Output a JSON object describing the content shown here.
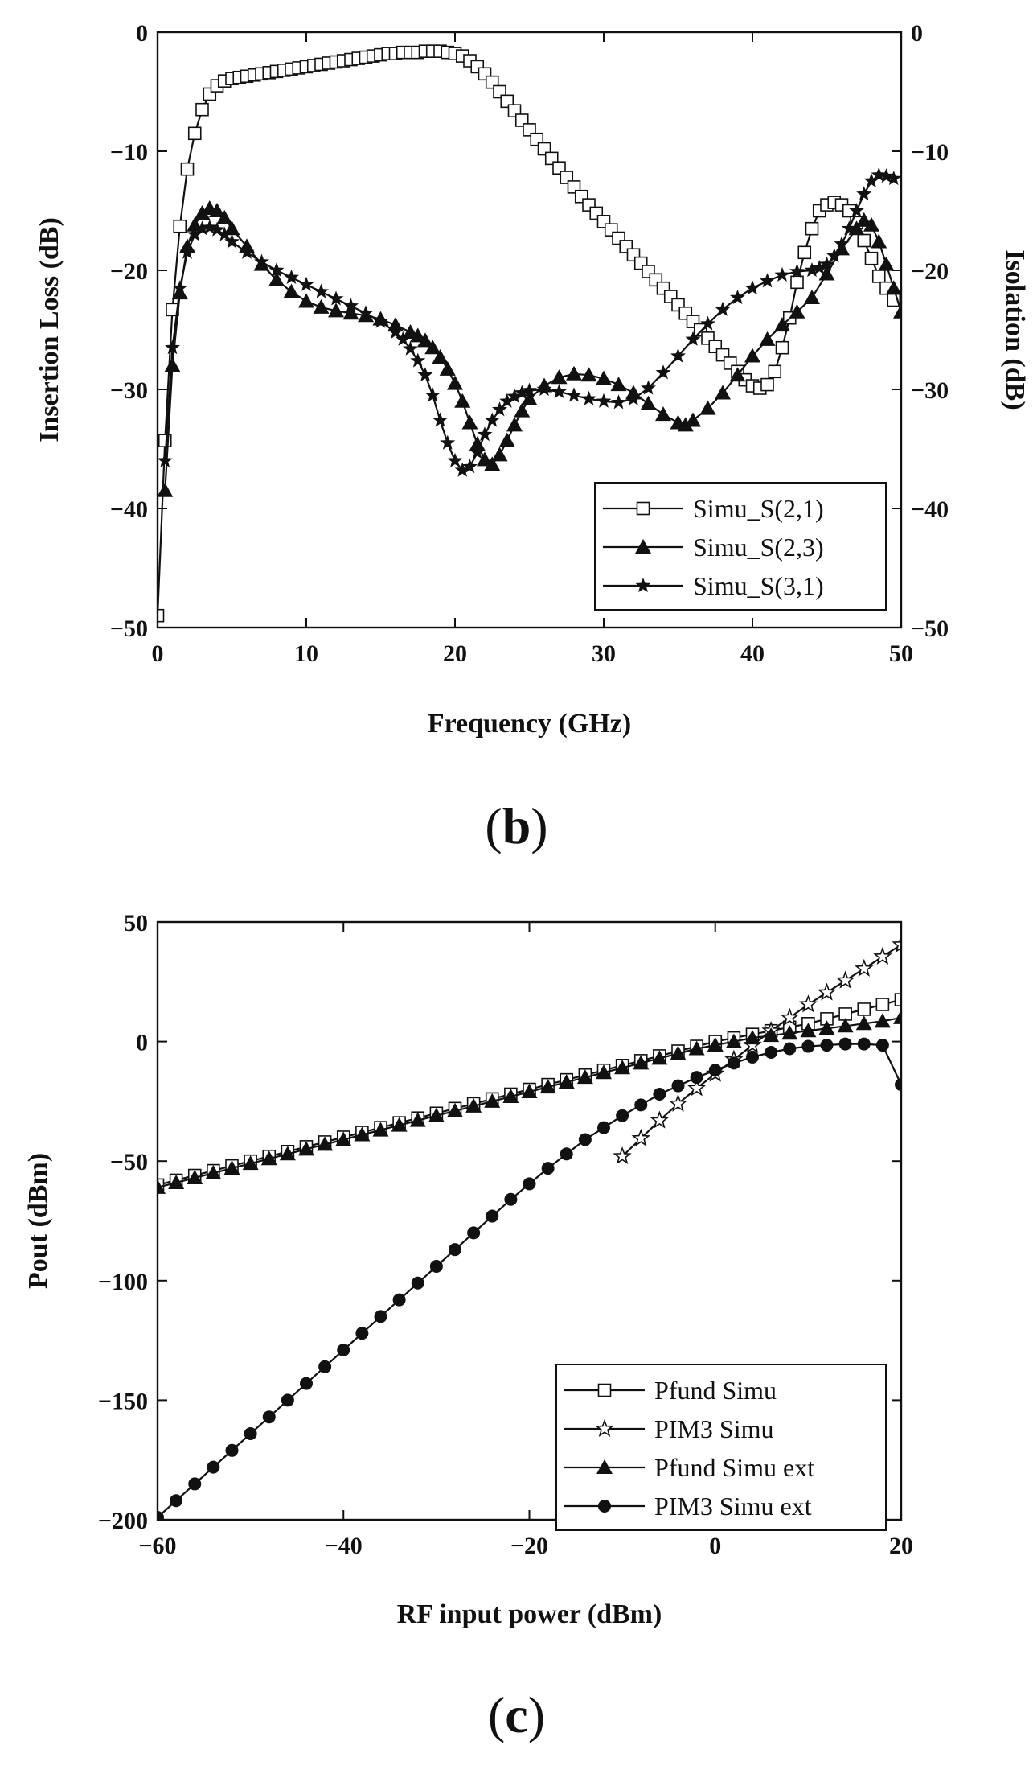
{
  "panel_b_caption": "b",
  "panel_c_caption": "c",
  "chart_data": [
    {
      "id": "b",
      "type": "line",
      "title": "",
      "xlabel": "Frequency (GHz)",
      "ylabel": "Insertion Loss (dB)",
      "ylabel_right": "Isolation (dB)",
      "xlim": [
        0,
        50
      ],
      "ylim": [
        -50,
        0
      ],
      "xticks": [
        "0",
        "10",
        "20",
        "30",
        "40",
        "50"
      ],
      "yticks": [
        "0",
        "−10",
        "−20",
        "−30",
        "−40",
        "−50"
      ],
      "yticks_right": [
        "0",
        "−10",
        "−20",
        "−30",
        "−40",
        "−50"
      ],
      "legend_position": "bottom-right",
      "series": [
        {
          "name": "Simu_S(2,1)",
          "marker": "square-open",
          "x": [
            0,
            0.5,
            1,
            1.5,
            2,
            2.5,
            3,
            3.5,
            4,
            4.5,
            5,
            5.5,
            6,
            6.5,
            7,
            7.5,
            8,
            8.5,
            9,
            9.5,
            10,
            10.5,
            11,
            11.5,
            12,
            12.5,
            13,
            13.5,
            14,
            14.5,
            15,
            15.5,
            16,
            16.5,
            17,
            17.5,
            18,
            18.5,
            19,
            19.5,
            20,
            20.5,
            21,
            21.5,
            22,
            22.5,
            23,
            23.5,
            24,
            24.5,
            25,
            25.5,
            26,
            26.5,
            27,
            27.5,
            28,
            28.5,
            29,
            29.5,
            30,
            30.5,
            31,
            31.5,
            32,
            32.5,
            33,
            33.5,
            34,
            34.5,
            35,
            35.5,
            36,
            36.5,
            37,
            37.5,
            38,
            38.5,
            39,
            39.5,
            40,
            40.5,
            41,
            41.5,
            42,
            42.5,
            43,
            43.5,
            44,
            44.5,
            45,
            45.5,
            46,
            46.5,
            47,
            47.5,
            48,
            48.5,
            49,
            49.5
          ],
          "y": [
            -49,
            -34.3,
            -23.3,
            -16.3,
            -11.5,
            -8.5,
            -6.5,
            -5.2,
            -4.5,
            -4.1,
            -3.9,
            -3.8,
            -3.7,
            -3.6,
            -3.5,
            -3.4,
            -3.3,
            -3.2,
            -3.1,
            -3,
            -2.9,
            -2.8,
            -2.7,
            -2.6,
            -2.5,
            -2.4,
            -2.3,
            -2.2,
            -2.1,
            -2,
            -1.9,
            -1.8,
            -1.8,
            -1.7,
            -1.7,
            -1.7,
            -1.6,
            -1.6,
            -1.6,
            -1.7,
            -1.8,
            -2,
            -2.4,
            -2.9,
            -3.5,
            -4.2,
            -5,
            -5.8,
            -6.6,
            -7.4,
            -8.2,
            -9,
            -9.8,
            -10.6,
            -11.4,
            -12.2,
            -13,
            -13.8,
            -14.5,
            -15.2,
            -15.9,
            -16.6,
            -17.3,
            -18,
            -18.7,
            -19.4,
            -20.1,
            -20.8,
            -21.5,
            -22.2,
            -22.9,
            -23.6,
            -24.3,
            -25,
            -25.7,
            -26.4,
            -27.1,
            -27.8,
            -28.5,
            -29.2,
            -29.7,
            -29.9,
            -29.6,
            -28.5,
            -26.5,
            -24,
            -21,
            -18.5,
            -16.5,
            -15,
            -14.5,
            -14.3,
            -14.5,
            -15,
            -16,
            -17.5,
            -19,
            -20.5,
            -21.5,
            -22.5
          ]
        },
        {
          "name": "Simu_S(2,3)",
          "marker": "triangle-filled",
          "x": [
            0.5,
            1,
            1.5,
            2,
            2.5,
            3,
            3.5,
            4,
            4.5,
            5,
            6,
            7,
            8,
            9,
            10,
            11,
            12,
            13,
            14,
            15,
            16,
            17,
            17.5,
            18,
            18.5,
            19,
            19.5,
            20,
            20.5,
            21,
            21.5,
            22,
            22.5,
            23,
            23.5,
            24,
            24.5,
            25,
            26,
            27,
            28,
            29,
            30,
            31,
            32,
            33,
            34,
            35,
            35.5,
            36,
            37,
            38,
            39,
            40,
            41,
            42,
            43,
            44,
            45,
            46,
            47,
            47.5,
            48,
            48.5,
            49,
            49.5,
            50
          ],
          "y": [
            -38.5,
            -28,
            -21.9,
            -18,
            -16.2,
            -15.2,
            -14.8,
            -15,
            -15.6,
            -16.5,
            -18,
            -19.5,
            -20.8,
            -21.8,
            -22.6,
            -23.1,
            -23.4,
            -23.6,
            -23.8,
            -24.1,
            -24.6,
            -25.2,
            -25.5,
            -25.9,
            -26.5,
            -27.3,
            -28.3,
            -29.5,
            -31,
            -32.8,
            -34.6,
            -35.9,
            -36.3,
            -35.5,
            -34.3,
            -33,
            -31.8,
            -30.8,
            -29.7,
            -29,
            -28.7,
            -28.8,
            -29.1,
            -29.6,
            -30.3,
            -31.2,
            -32.1,
            -32.8,
            -33,
            -32.6,
            -31.6,
            -30.3,
            -28.8,
            -27.2,
            -25.8,
            -24.6,
            -23.5,
            -22.3,
            -20.3,
            -18.2,
            -16.5,
            -15.8,
            -16.2,
            -17.6,
            -19.5,
            -21.5,
            -23.5
          ]
        },
        {
          "name": "Simu_S(3,1)",
          "marker": "star-filled",
          "x": [
            0.5,
            1,
            1.5,
            2,
            2.5,
            3,
            3.5,
            4,
            4.5,
            5,
            6,
            7,
            8,
            9,
            10,
            11,
            12,
            13,
            14,
            15,
            16,
            16.5,
            17,
            17.5,
            18,
            18.5,
            19,
            19.5,
            20,
            20.5,
            21,
            21.5,
            22,
            22.5,
            23,
            23.5,
            24,
            24.5,
            25,
            26,
            27,
            28,
            29,
            30,
            31,
            32,
            33,
            34,
            35,
            36,
            37,
            38,
            39,
            40,
            41,
            42,
            43,
            44,
            44.5,
            45,
            45.5,
            46,
            46.5,
            47,
            47.5,
            48,
            48.5,
            49,
            49.5
          ],
          "y": [
            -36,
            -26.5,
            -21.5,
            -18.5,
            -17,
            -16.5,
            -16.4,
            -16.6,
            -17,
            -17.6,
            -18.5,
            -19.3,
            -20,
            -20.6,
            -21.2,
            -21.8,
            -22.4,
            -23,
            -23.6,
            -24.3,
            -25.2,
            -25.8,
            -26.6,
            -27.6,
            -28.8,
            -30.5,
            -32.6,
            -34.5,
            -36,
            -36.8,
            -36.5,
            -35.3,
            -33.8,
            -32.6,
            -31.7,
            -31,
            -30.6,
            -30.3,
            -30.1,
            -30,
            -30.2,
            -30.5,
            -30.8,
            -31,
            -31.1,
            -30.8,
            -29.9,
            -28.6,
            -27.2,
            -25.8,
            -24.5,
            -23.3,
            -22.3,
            -21.5,
            -20.9,
            -20.4,
            -20.1,
            -20,
            -19.8,
            -19.5,
            -18.8,
            -17.8,
            -16.5,
            -15,
            -13.6,
            -12.5,
            -12,
            -12.1,
            -12.3
          ]
        }
      ]
    },
    {
      "id": "c",
      "type": "line",
      "title": "",
      "xlabel": "RF input power (dBm)",
      "ylabel": "Pout (dBm)",
      "xlim": [
        -60,
        20
      ],
      "ylim": [
        -200,
        50
      ],
      "xticks": [
        "−60",
        "−40",
        "−20",
        "0",
        "20"
      ],
      "yticks": [
        "50",
        "0",
        "−50",
        "−100",
        "−150",
        "−200"
      ],
      "legend_position": "bottom-right",
      "series": [
        {
          "name": "Pfund Simu",
          "marker": "square-open",
          "x": [
            -60,
            -58,
            -56,
            -54,
            -52,
            -50,
            -48,
            -46,
            -44,
            -42,
            -40,
            -38,
            -36,
            -34,
            -32,
            -30,
            -28,
            -26,
            -24,
            -22,
            -20,
            -18,
            -16,
            -14,
            -12,
            -10,
            -8,
            -6,
            -4,
            -2,
            0,
            2,
            4,
            6,
            8,
            10,
            12,
            14,
            16,
            18,
            20
          ],
          "y": [
            -60,
            -58,
            -56,
            -54,
            -52,
            -50,
            -48,
            -46,
            -44,
            -42,
            -40,
            -38,
            -36,
            -34,
            -32,
            -30,
            -28,
            -26,
            -24,
            -22,
            -20,
            -18,
            -16,
            -14,
            -12,
            -10,
            -8,
            -6,
            -4,
            -2,
            0,
            1.5,
            3,
            4.5,
            6,
            7.5,
            9.5,
            11.5,
            13.5,
            15.5,
            17.5
          ]
        },
        {
          "name": "PIM3 Simu",
          "marker": "star-open",
          "x": [
            -10,
            -8,
            -6,
            -4,
            -2,
            0,
            2,
            4,
            6,
            8,
            10,
            12,
            14,
            16,
            18,
            20
          ],
          "y": [
            -48,
            -40.5,
            -33,
            -26,
            -19.5,
            -13.5,
            -7.5,
            -1.5,
            4.5,
            10,
            15.5,
            20.5,
            25.5,
            30.5,
            35.5,
            40.5
          ]
        },
        {
          "name": "Pfund Simu ext",
          "marker": "triangle-filled",
          "x": [
            -60,
            -58,
            -56,
            -54,
            -52,
            -50,
            -48,
            -46,
            -44,
            -42,
            -40,
            -38,
            -36,
            -34,
            -32,
            -30,
            -28,
            -26,
            -24,
            -22,
            -20,
            -18,
            -16,
            -14,
            -12,
            -10,
            -8,
            -6,
            -4,
            -2,
            0,
            2,
            4,
            6,
            8,
            10,
            12,
            14,
            16,
            18,
            20
          ],
          "y": [
            -61,
            -59,
            -57,
            -55,
            -53,
            -51,
            -49,
            -47,
            -45,
            -43,
            -41,
            -39,
            -37,
            -35,
            -33,
            -31,
            -29,
            -27,
            -25,
            -23,
            -21,
            -19,
            -17,
            -15,
            -13,
            -11,
            -9,
            -7,
            -5,
            -3,
            -1.5,
            0,
            1.5,
            2.5,
            3.5,
            4.5,
            5.5,
            6.5,
            7.5,
            8.5,
            10
          ]
        },
        {
          "name": "PIM3 Simu ext",
          "marker": "circle-filled",
          "x": [
            -60,
            -58,
            -56,
            -54,
            -52,
            -50,
            -48,
            -46,
            -44,
            -42,
            -40,
            -38,
            -36,
            -34,
            -32,
            -30,
            -28,
            -26,
            -24,
            -22,
            -20,
            -18,
            -16,
            -14,
            -12,
            -10,
            -8,
            -6,
            -4,
            -2,
            0,
            2,
            4,
            6,
            8,
            10,
            12,
            14,
            16,
            18,
            20
          ],
          "y": [
            -199,
            -192,
            -185,
            -178,
            -171,
            -164,
            -157,
            -150,
            -143,
            -136,
            -129,
            -122,
            -115,
            -108,
            -101,
            -94,
            -87,
            -80,
            -73,
            -66,
            -59.5,
            -53,
            -47,
            -41,
            -36,
            -31,
            -26.5,
            -22,
            -18.5,
            -15,
            -12,
            -9,
            -6.5,
            -4.5,
            -3,
            -2,
            -1.5,
            -1,
            -1,
            -1.5,
            -18
          ]
        }
      ]
    }
  ]
}
